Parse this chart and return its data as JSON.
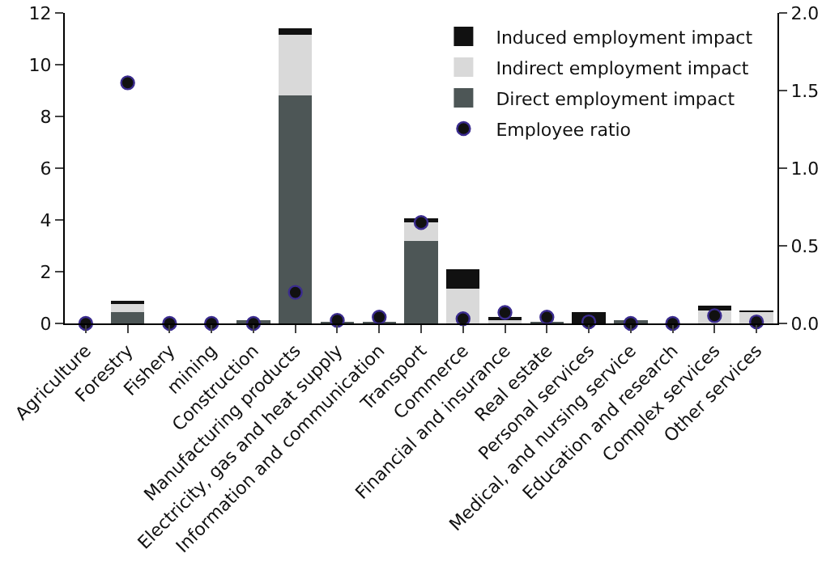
{
  "chart_data": {
    "type": "bar",
    "stacked": true,
    "categories": [
      "Agriculture",
      "Forestry",
      "Fishery",
      "mining",
      "Construction",
      "Manufacturing products",
      "Electricity, gas and heat supply",
      "Information and communication",
      "Transport",
      "Commerce",
      "Financial and insurance",
      "Real estate",
      "Personal services",
      "Medical, and nursing service",
      "Education and research",
      "Complex services",
      "Other services"
    ],
    "series": [
      {
        "name": "Direct employment impact",
        "color": "#4d5656",
        "values": [
          0,
          0.45,
          0,
          0,
          0.08,
          8.8,
          0.02,
          0.03,
          3.2,
          0,
          0,
          0.02,
          0,
          0.1,
          0,
          0,
          0
        ]
      },
      {
        "name": "Indirect employment impact",
        "color": "#d9d9d9",
        "values": [
          0,
          0.3,
          0,
          0,
          0,
          2.35,
          0,
          0,
          0.7,
          1.35,
          0.15,
          0,
          0,
          0,
          0,
          0.5,
          0.45
        ]
      },
      {
        "name": "Induced employment impact",
        "color": "#111111",
        "values": [
          0,
          0.1,
          0,
          0,
          0,
          0.25,
          0,
          0,
          0.15,
          0.75,
          0.05,
          0,
          0.45,
          0,
          0,
          0.18,
          0.05
        ]
      },
      {
        "name": "Employee ratio",
        "type": "scatter",
        "axis": "y2",
        "color": "#111111",
        "values": [
          0,
          1.55,
          0,
          0,
          0,
          0.2,
          0.02,
          0.04,
          0.65,
          0.03,
          0.07,
          0.04,
          0.01,
          0,
          0,
          0.05,
          0.01
        ]
      }
    ],
    "ylim": [
      0,
      12
    ],
    "yticks": [
      0,
      2,
      4,
      6,
      8,
      10,
      12
    ],
    "y2lim": [
      0,
      2
    ],
    "y2ticks": [
      {
        "value": 0,
        "label": "0.0"
      },
      {
        "value": 0.5,
        "label": "0.5"
      },
      {
        "value": 1,
        "label": "1.0"
      },
      {
        "value": 1.5,
        "label": "1.5"
      },
      {
        "value": 2,
        "label": "2.0"
      }
    ],
    "marker": "circle",
    "grid": false,
    "legend": "top right"
  }
}
